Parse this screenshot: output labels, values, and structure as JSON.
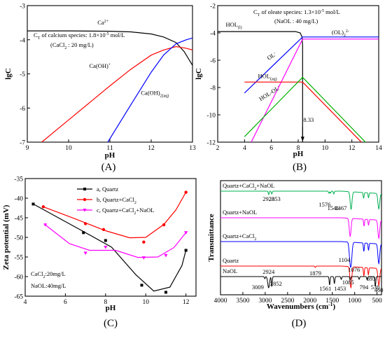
{
  "chart_data": [
    {
      "panel": "(A)",
      "type": "line",
      "xlabel": "pH",
      "ylabel": "lgC",
      "xlim": [
        9,
        13
      ],
      "ylim": [
        -7,
        -3
      ],
      "xticks": [
        9,
        10,
        11,
        12,
        13
      ],
      "yticks": [
        -7,
        -6,
        -5,
        -4,
        -3
      ],
      "annotations": {
        "line1": "C",
        "line1_sub": "T",
        "line1_rest": " of calcium species: 1.8×10",
        "line1_sup": "-5",
        "line1_end": " mol/L",
        "line2": "(CaCl",
        "line2_sub": "2",
        "line2_end": " : 20 mg/L)"
      },
      "series": [
        {
          "name": "Ca",
          "sup": "2+",
          "color": "#000000",
          "x": [
            9,
            10,
            11,
            11.5,
            12,
            12.3,
            12.6,
            12.8,
            13
          ],
          "y": [
            -3.74,
            -3.74,
            -3.75,
            -3.77,
            -3.83,
            -3.92,
            -4.08,
            -4.35,
            -4.75
          ]
        },
        {
          "name": "Ca(OH)",
          "sup": "+",
          "color": "#ff0000",
          "x": [
            9.35,
            10,
            11,
            11.5,
            12,
            12.3,
            12.6,
            12.85,
            13
          ],
          "y": [
            -7,
            -6.35,
            -5.35,
            -4.87,
            -4.45,
            -4.3,
            -4.2,
            -4.25,
            -4.3
          ]
        },
        {
          "name": "Ca(OH)",
          "sub": "2(aq)",
          "color": "#0000ff",
          "x": [
            10.95,
            11.5,
            12,
            12.3,
            12.6,
            12.85,
            13
          ],
          "y": [
            -7,
            -5.92,
            -4.95,
            -4.45,
            -4.12,
            -4.0,
            -3.95
          ]
        }
      ]
    },
    {
      "panel": "(B)",
      "type": "line",
      "xlabel": "pH",
      "ylabel": "lgC",
      "xlim": [
        2,
        14
      ],
      "ylim": [
        -12,
        -2
      ],
      "xticks": [
        2,
        4,
        6,
        8,
        10,
        12,
        14
      ],
      "yticks": [
        -12,
        -10,
        -8,
        -6,
        -4,
        -2
      ],
      "annotations": {
        "line1": "C",
        "line1_sub": "T",
        "line1_rest": " of oleate species: 1.3×10",
        "line1_sup": "-5",
        "line1_end": " mol/L",
        "line2": "(NaOL : 40 mg/L)",
        "marker": "8.33"
      },
      "series": [
        {
          "name": "HOL",
          "sub": "(l)",
          "color": "#000000",
          "x": [
            2,
            7.8,
            8.15,
            8.28,
            8.33,
            8.33
          ],
          "y": [
            -3.9,
            -3.9,
            -4.0,
            -4.3,
            -4.9,
            -12
          ]
        },
        {
          "name": "OL",
          "sup": "-",
          "color": "#0000ff",
          "x": [
            4,
            8.33,
            14
          ],
          "y": [
            -8.4,
            -4.3,
            -4.3
          ]
        },
        {
          "name": "(OL)",
          "sub": "2",
          "sup": "2-",
          "color": "#ff00ff",
          "x": [
            4.5,
            8.33,
            14
          ],
          "y": [
            -12,
            -4.45,
            -4.45
          ]
        },
        {
          "name": "HOL",
          "sub": "(aq)",
          "color": "#ff0000",
          "x": [
            4,
            8.33,
            14
          ],
          "y": [
            -7.6,
            -7.6,
            -13.3
          ]
        },
        {
          "name": "HOL-OL",
          "sup": "-",
          "color": "#00b000",
          "x": [
            4,
            8.33,
            14
          ],
          "y": [
            -11.6,
            -7.25,
            -13.0
          ]
        }
      ]
    },
    {
      "panel": "(C)",
      "type": "line",
      "xlabel": "pH",
      "ylabel": "Zeta potential (mV)",
      "xlim": [
        4,
        12.5
      ],
      "ylim": [
        -65,
        -35
      ],
      "xticks": [
        4,
        6,
        8,
        10,
        12
      ],
      "yticks": [
        -65,
        -60,
        -55,
        -50,
        -45,
        -40,
        -35
      ],
      "annotations": {
        "line1": "CaCl",
        "line1_sub": "2",
        "line1_end": ":20mg/L",
        "line2": "NaOL:40mg/L"
      },
      "series": [
        {
          "name": "a, Quartz",
          "color": "#000000",
          "marker": "square",
          "x": [
            4.4,
            6.9,
            8.0,
            9.8,
            11.0,
            12.0
          ],
          "y": [
            -41.5,
            -48.8,
            -50.8,
            -62.2,
            -64.0,
            -53.3
          ]
        },
        {
          "name": "b, Quartz+CaCl",
          "sub": "2",
          "color": "#ff0000",
          "marker": "circle",
          "x": [
            4.9,
            7.0,
            7.9,
            9.9,
            10.9,
            12.0
          ],
          "y": [
            -42.2,
            -46.5,
            -48.0,
            -51.2,
            -46.8,
            -38.5
          ]
        },
        {
          "name": "c, Quartz+CaCl",
          "sub": "2",
          "name_end": "+NaOL",
          "color": "#ff00ff",
          "marker": "triangle",
          "x": [
            5.0,
            7.0,
            8.0,
            9.9,
            11.0,
            12.0
          ],
          "y": [
            -46.8,
            -54.0,
            -52.5,
            -55.2,
            -54.6,
            -48.8
          ]
        }
      ]
    },
    {
      "panel": "(D)",
      "type": "line",
      "xlabel": "Wavenumbers (cm",
      "xlabel_sup": "-1",
      "xlabel_end": ")",
      "ylabel": "Transmittance",
      "xlim": [
        4000,
        400
      ],
      "xticks": [
        4000,
        3500,
        3000,
        2500,
        2000,
        1500,
        1000,
        500
      ],
      "series": [
        {
          "name": "Quartz+CaCl",
          "sub": "2",
          "name_end": "+NaOL",
          "color": "#00b050",
          "peaks": [
            "2923",
            "2853",
            "1576",
            "1541",
            "1467"
          ]
        },
        {
          "name": "Quartz+NaOL",
          "color": "#ff00ff",
          "peaks": []
        },
        {
          "name": "Quartz+CaCl",
          "sub": "2",
          "color": "#0000ff",
          "peaks": [
            "1104",
            "1076"
          ]
        },
        {
          "name": "Quartz",
          "color": "#ff0000",
          "peaks": [
            "1879",
            "1085",
            "794",
            "693",
            "460"
          ]
        },
        {
          "name": "NaOL",
          "color": "#000000",
          "peaks": [
            "3009",
            "2924",
            "2852",
            "1561",
            "1453",
            "538"
          ]
        }
      ]
    }
  ]
}
